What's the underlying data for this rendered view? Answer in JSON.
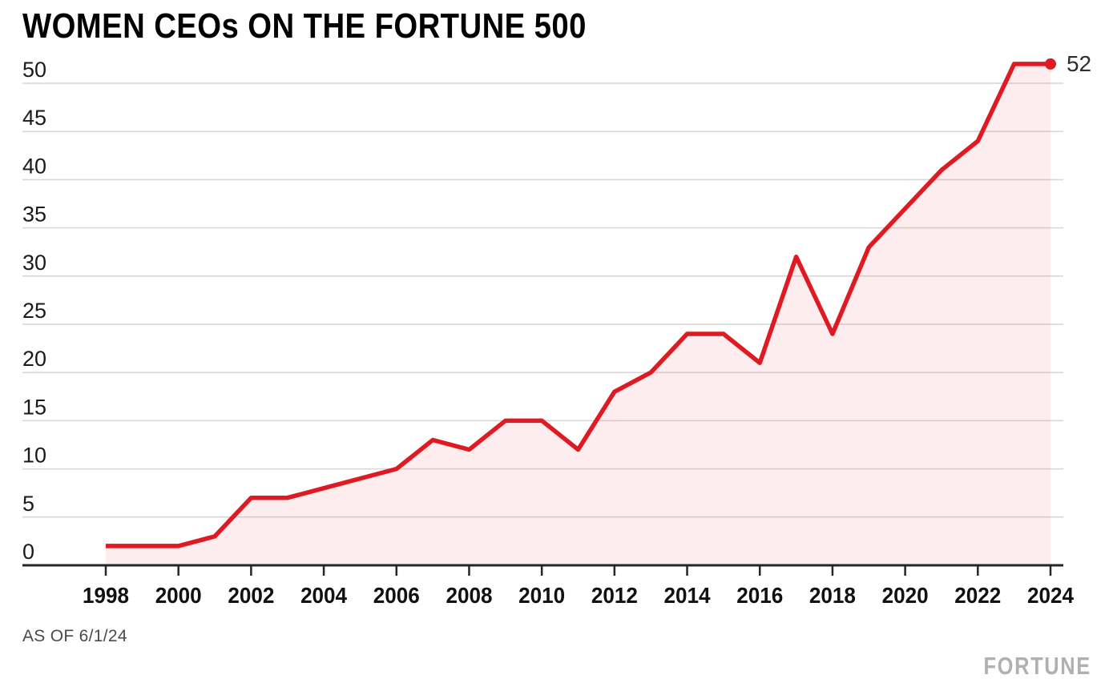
{
  "header": {
    "title": "WOMEN CEOs ON THE FORTUNE 500"
  },
  "chart_data": {
    "type": "area",
    "title": "WOMEN CEOs ON THE FORTUNE 500",
    "x": [
      1998,
      1999,
      2000,
      2001,
      2002,
      2003,
      2004,
      2005,
      2006,
      2007,
      2008,
      2009,
      2010,
      2011,
      2012,
      2013,
      2014,
      2015,
      2016,
      2017,
      2018,
      2019,
      2020,
      2021,
      2022,
      2023,
      2024
    ],
    "values": [
      2,
      2,
      2,
      3,
      7,
      7,
      8,
      9,
      10,
      13,
      12,
      15,
      15,
      12,
      18,
      20,
      24,
      24,
      21,
      32,
      24,
      33,
      37,
      41,
      44,
      52,
      52
    ],
    "xlabel": "",
    "ylabel": "",
    "x_tick_years": [
      1998,
      2000,
      2002,
      2004,
      2006,
      2008,
      2010,
      2012,
      2014,
      2016,
      2018,
      2020,
      2022,
      2024
    ],
    "y_ticks": [
      0,
      5,
      10,
      15,
      20,
      25,
      30,
      35,
      40,
      45,
      50
    ],
    "xlim": [
      1998,
      2024
    ],
    "ylim": [
      0,
      52
    ],
    "grid": "horizontal",
    "legend": "none",
    "end_label": "52",
    "colors": {
      "line": "#e01a22",
      "fill": "rgba(224, 26, 34, 0.08)",
      "grid": "#d6d6d6",
      "axis": "#262626",
      "y_tick_label": "#1a1a1a",
      "x_tick_label": "#111111",
      "end_label": "#2e2e2e"
    }
  },
  "footer": {
    "as_of": "AS OF 6/1/24",
    "brand": "FORTUNE"
  }
}
